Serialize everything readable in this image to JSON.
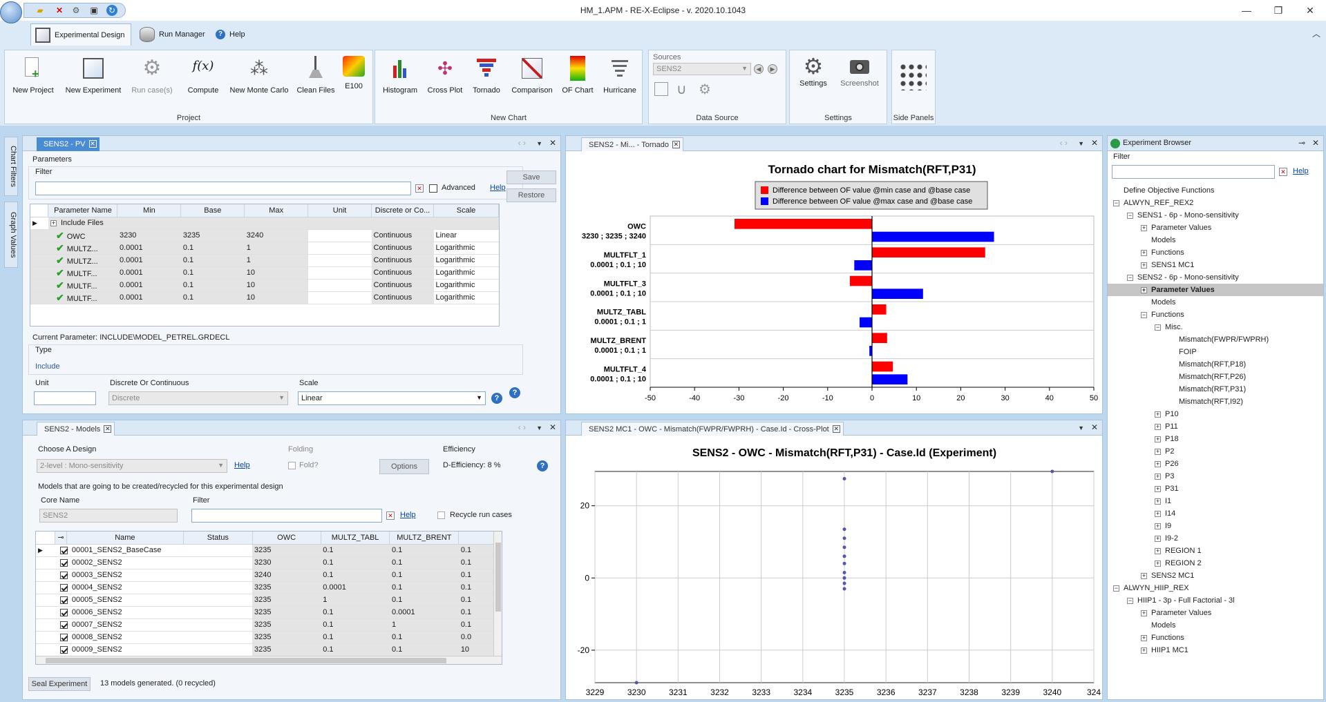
{
  "window": {
    "title": "HM_1.APM - RE-X-Eclipse - v. 2020.10.1043"
  },
  "ribbon_tabs": [
    "Experimental Design",
    "Run Manager",
    "Help"
  ],
  "ribbon": {
    "project": {
      "label": "Project",
      "buttons": [
        "New Project",
        "New Experiment",
        "Run case(s)",
        "Compute",
        "New Monte Carlo",
        "Clean Files",
        "E100"
      ],
      "compute_icon": "f(x)"
    },
    "new_chart": {
      "label": "New Chart",
      "buttons": [
        "Histogram",
        "Cross Plot",
        "Tornado",
        "Comparison",
        "OF Chart",
        "Hurricane"
      ]
    },
    "data_source": {
      "label": "Data Source",
      "sources_label": "Sources",
      "source_value": "SENS2"
    },
    "settings": {
      "label": "Settings",
      "buttons": [
        "Settings",
        "Screenshot"
      ]
    },
    "side_panels": {
      "label": "Side Panels"
    }
  },
  "side_tabs": [
    "Chart Filters",
    "Graph Values"
  ],
  "pv_panel": {
    "tab": "SENS2 - PV",
    "parameters_label": "Parameters",
    "filter_label": "Filter",
    "advanced_label": "Advanced",
    "help": "Help",
    "save": "Save",
    "restore": "Restore",
    "columns": [
      "Parameter Name",
      "Min",
      "Base",
      "Max",
      "Unit",
      "Discrete or Co...",
      "Scale"
    ],
    "group_row": "Include Files",
    "rows": [
      {
        "name": "OWC",
        "min": "3230",
        "base": "3235",
        "max": "3240",
        "unit": "",
        "dc": "Continuous",
        "scale": "Linear"
      },
      {
        "name": "MULTZ...",
        "min": "0.0001",
        "base": "0.1",
        "max": "1",
        "unit": "",
        "dc": "Continuous",
        "scale": "Logarithmic"
      },
      {
        "name": "MULTZ...",
        "min": "0.0001",
        "base": "0.1",
        "max": "1",
        "unit": "",
        "dc": "Continuous",
        "scale": "Logarithmic"
      },
      {
        "name": "MULTF...",
        "min": "0.0001",
        "base": "0.1",
        "max": "10",
        "unit": "",
        "dc": "Continuous",
        "scale": "Logarithmic"
      },
      {
        "name": "MULTF...",
        "min": "0.0001",
        "base": "0.1",
        "max": "10",
        "unit": "",
        "dc": "Continuous",
        "scale": "Logarithmic"
      },
      {
        "name": "MULTF...",
        "min": "0.0001",
        "base": "0.1",
        "max": "10",
        "unit": "",
        "dc": "Continuous",
        "scale": "Logarithmic"
      }
    ],
    "current_parameter": "Current Parameter: INCLUDE\\MODEL_PETREL.GRDECL",
    "type_label": "Type",
    "type_value": "Include",
    "unit_label": "Unit",
    "dc_label": "Discrete Or Continuous",
    "dc_value": "Discrete",
    "scale_label": "Scale",
    "scale_value": "Linear"
  },
  "models_panel": {
    "tab": "SENS2 - Models",
    "choose_design": "Choose A Design",
    "design_value": "2-level : Mono-sensitivity",
    "help": "Help",
    "folding": "Folding",
    "fold": "Fold?",
    "options": "Options",
    "efficiency": "Efficiency",
    "d_efficiency": "D-Efficiency: 8 %",
    "models_caption": "Models that are going to be created/recycled for this experimental design",
    "core_name_label": "Core Name",
    "core_name_value": "SENS2",
    "filter_label": "Filter",
    "recycle": "Recycle run cases",
    "columns": [
      "Name",
      "Status",
      "OWC",
      "MULTZ_TABL",
      "MULTZ_BRENT",
      ""
    ],
    "rows": [
      {
        "name": "00001_SENS2_BaseCase",
        "status": "",
        "owc": "3235",
        "tabl": "0.1",
        "brent": "0.1",
        "x": "0.1"
      },
      {
        "name": "00002_SENS2",
        "status": "",
        "owc": "3230",
        "tabl": "0.1",
        "brent": "0.1",
        "x": "0.1"
      },
      {
        "name": "00003_SENS2",
        "status": "",
        "owc": "3240",
        "tabl": "0.1",
        "brent": "0.1",
        "x": "0.1"
      },
      {
        "name": "00004_SENS2",
        "status": "",
        "owc": "3235",
        "tabl": "0.0001",
        "brent": "0.1",
        "x": "0.1"
      },
      {
        "name": "00005_SENS2",
        "status": "",
        "owc": "3235",
        "tabl": "1",
        "brent": "0.1",
        "x": "0.1"
      },
      {
        "name": "00006_SENS2",
        "status": "",
        "owc": "3235",
        "tabl": "0.1",
        "brent": "0.0001",
        "x": "0.1"
      },
      {
        "name": "00007_SENS2",
        "status": "",
        "owc": "3235",
        "tabl": "0.1",
        "brent": "1",
        "x": "0.1"
      },
      {
        "name": "00008_SENS2",
        "status": "",
        "owc": "3235",
        "tabl": "0.1",
        "brent": "0.1",
        "x": "0.0"
      },
      {
        "name": "00009_SENS2",
        "status": "",
        "owc": "3235",
        "tabl": "0.1",
        "brent": "0.1",
        "x": "10"
      }
    ],
    "seal": "Seal Experiment",
    "status": "13 models generated. (0 recycled)"
  },
  "tornado_panel": {
    "tab": "SENS2 - Mi... - Tornado"
  },
  "cross_panel": {
    "tab": "SENS2 MC1 - OWC - Mismatch(FWPR/FWPRH) - Case.Id - Cross-Plot"
  },
  "chart_data": [
    {
      "type": "bar",
      "orientation": "horizontal",
      "title": "Tornado chart for Mismatch(RFT,P31)",
      "categories": [
        "OWC\n3230 ; 3235 ; 3240",
        "MULTFLT_1\n0.0001 ; 0.1 ; 10",
        "MULTFLT_3\n0.0001 ; 0.1 ; 10",
        "MULTZ_TABL\n0.0001 ; 0.1 ; 1",
        "MULTZ_BRENT\n0.0001 ; 0.1 ; 1",
        "MULTFLT_4\n0.0001 ; 0.1 ; 10"
      ],
      "series": [
        {
          "name": "Difference between OF value @min case and @base case",
          "color": "#ff0000",
          "values": [
            -31,
            25.5,
            -5,
            3.2,
            3.4,
            4.7
          ]
        },
        {
          "name": "Difference between OF value @max case and @base case",
          "color": "#0000ff",
          "values": [
            27.5,
            -4,
            11.5,
            -2.8,
            -0.6,
            8
          ]
        }
      ],
      "xlim": [
        -50,
        50
      ],
      "xticks": [
        -50,
        -40,
        -30,
        -20,
        -10,
        0,
        10,
        20,
        30,
        40,
        50
      ],
      "legend": "top-center",
      "grid": true
    },
    {
      "type": "scatter",
      "title": "SENS2 - OWC - Mismatch(RFT,P31) - Case.Id (Experiment)",
      "color": "#5555aa",
      "points": [
        {
          "x": 3230,
          "y": -29
        },
        {
          "x": 3235,
          "y": 27.5
        },
        {
          "x": 3235,
          "y": 13.5
        },
        {
          "x": 3235,
          "y": 11
        },
        {
          "x": 3235,
          "y": 8.5
        },
        {
          "x": 3235,
          "y": 6
        },
        {
          "x": 3235,
          "y": 4
        },
        {
          "x": 3235,
          "y": 1.5
        },
        {
          "x": 3235,
          "y": 0
        },
        {
          "x": 3235,
          "y": -1.5
        },
        {
          "x": 3235,
          "y": -3
        },
        {
          "x": 3240,
          "y": 29.5
        }
      ],
      "xlim": [
        3229,
        3241
      ],
      "xticks": [
        "3229",
        "3230",
        "3231",
        "3232",
        "3233",
        "3234",
        "3235",
        "3236",
        "3237",
        "3238",
        "3239",
        "3240",
        "324"
      ],
      "ylim": [
        -29,
        29.5
      ],
      "yticks": [
        20,
        0,
        -20
      ],
      "grid": true
    }
  ],
  "explorer": {
    "title": "Experiment Browser",
    "filter_label": "Filter",
    "help": "Help",
    "items": [
      {
        "label": "Define Objective Functions",
        "level": 0,
        "exp": ""
      },
      {
        "label": "ALWYN_REF_REX2",
        "level": 0,
        "exp": "-"
      },
      {
        "label": "SENS1 - 6p - Mono-sensitivity",
        "level": 1,
        "exp": "-"
      },
      {
        "label": "Parameter Values",
        "level": 2,
        "exp": "+"
      },
      {
        "label": "Models",
        "level": 2,
        "exp": ""
      },
      {
        "label": "Functions",
        "level": 2,
        "exp": "+"
      },
      {
        "label": "SENS1 MC1",
        "level": 2,
        "exp": "+"
      },
      {
        "label": "SENS2 - 6p - Mono-sensitivity",
        "level": 1,
        "exp": "-"
      },
      {
        "label": "Parameter Values",
        "level": 2,
        "exp": "+",
        "selected": true
      },
      {
        "label": "Models",
        "level": 2,
        "exp": ""
      },
      {
        "label": "Functions",
        "level": 2,
        "exp": "-"
      },
      {
        "label": "Misc.",
        "level": 3,
        "exp": "-"
      },
      {
        "label": "Mismatch(FWPR/FWPRH)",
        "level": 4,
        "exp": ""
      },
      {
        "label": "FOIP",
        "level": 4,
        "exp": ""
      },
      {
        "label": "Mismatch(RFT,P18)",
        "level": 4,
        "exp": ""
      },
      {
        "label": "Mismatch(RFT,P26)",
        "level": 4,
        "exp": ""
      },
      {
        "label": "Mismatch(RFT,P31)",
        "level": 4,
        "exp": ""
      },
      {
        "label": "Mismatch(RFT,I92)",
        "level": 4,
        "exp": ""
      },
      {
        "label": "P10",
        "level": 3,
        "exp": "+"
      },
      {
        "label": "P11",
        "level": 3,
        "exp": "+"
      },
      {
        "label": "P18",
        "level": 3,
        "exp": "+"
      },
      {
        "label": "P2",
        "level": 3,
        "exp": "+"
      },
      {
        "label": "P26",
        "level": 3,
        "exp": "+"
      },
      {
        "label": "P3",
        "level": 3,
        "exp": "+"
      },
      {
        "label": "P31",
        "level": 3,
        "exp": "+"
      },
      {
        "label": "I1",
        "level": 3,
        "exp": "+"
      },
      {
        "label": "I14",
        "level": 3,
        "exp": "+"
      },
      {
        "label": "I9",
        "level": 3,
        "exp": "+"
      },
      {
        "label": "I9-2",
        "level": 3,
        "exp": "+"
      },
      {
        "label": "REGION 1",
        "level": 3,
        "exp": "+"
      },
      {
        "label": "REGION 2",
        "level": 3,
        "exp": "+"
      },
      {
        "label": "SENS2 MC1",
        "level": 2,
        "exp": "+"
      },
      {
        "label": "ALWYN_HIIP_REX",
        "level": 0,
        "exp": "-"
      },
      {
        "label": "HIIP1 - 3p - Full Factorial - 3l",
        "level": 1,
        "exp": "-"
      },
      {
        "label": "Parameter Values",
        "level": 2,
        "exp": "+"
      },
      {
        "label": "Models",
        "level": 2,
        "exp": ""
      },
      {
        "label": "Functions",
        "level": 2,
        "exp": "+"
      },
      {
        "label": "HIIP1 MC1",
        "level": 2,
        "exp": "+"
      }
    ]
  }
}
